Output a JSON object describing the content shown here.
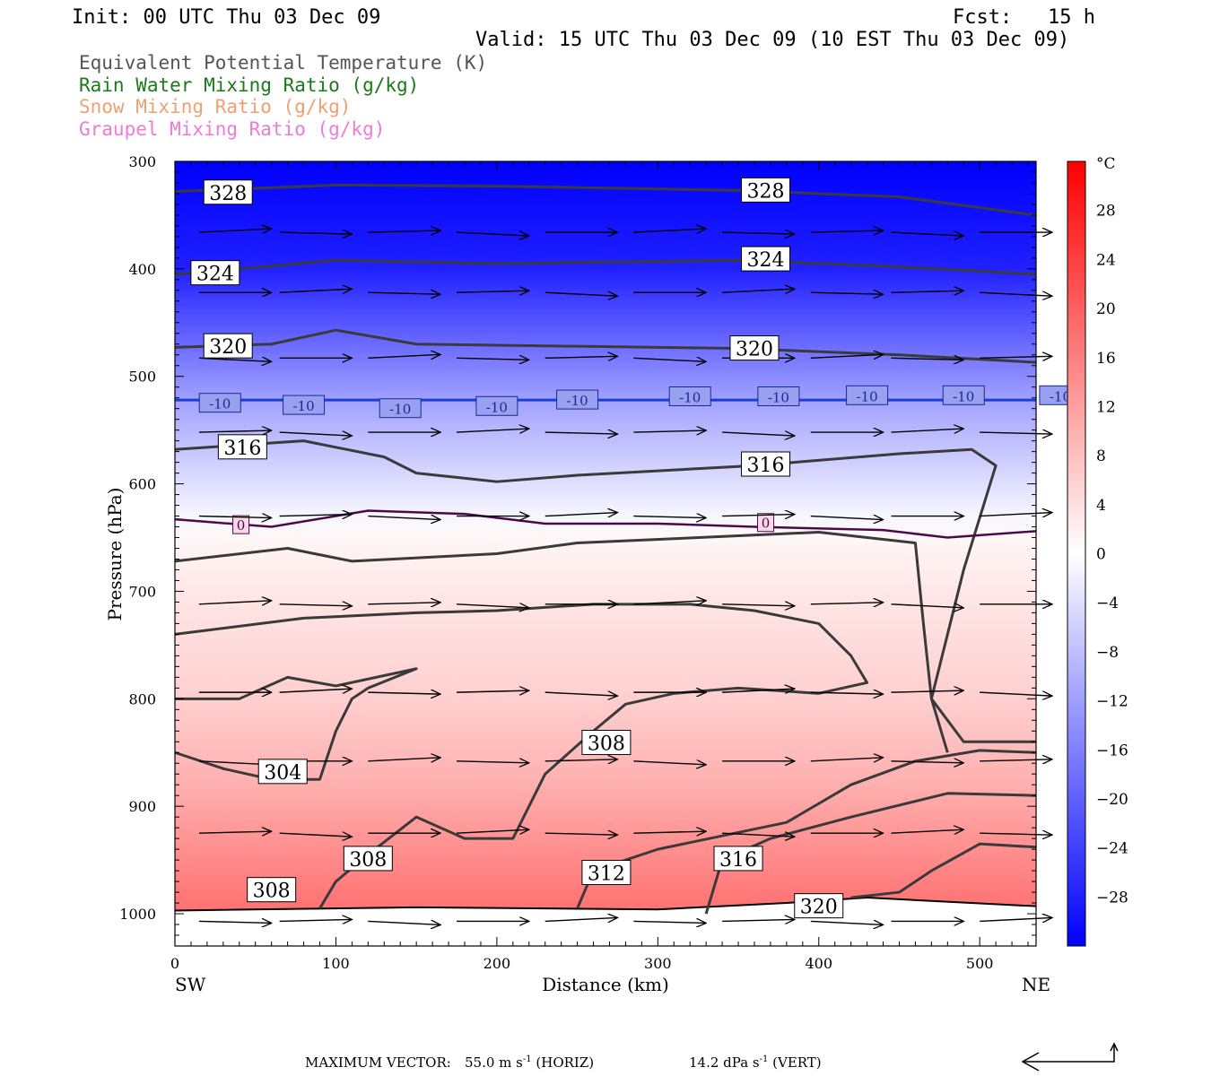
{
  "header": {
    "init": "Init: 00 UTC Thu 03 Dec 09",
    "fcst": "Fcst:   15 h",
    "valid": "Valid: 15 UTC Thu 03 Dec 09 (10 EST Thu 03 Dec 09)"
  },
  "legend": [
    {
      "label": "Equivalent Potential Temperature (K)",
      "color": "#555555"
    },
    {
      "label": "Rain Water Mixing Ratio (g/kg)",
      "color": "#1a7a1a"
    },
    {
      "label": "Snow Mixing Ratio (g/kg)",
      "color": "#f0a070"
    },
    {
      "label": "Graupel Mixing Ratio (g/kg)",
      "color": "#f07ad8"
    }
  ],
  "footer": {
    "max_vector_label": "MAXIMUM VECTOR:",
    "horiz_value": "55.0 m s",
    "horiz_exp": "-1",
    "horiz_tag": "(HORIZ)",
    "vert_value": "14.2 dPa s",
    "vert_exp": "-1",
    "vert_tag": "(VERT)"
  },
  "chart_data": {
    "type": "cross-section",
    "xlabel": "Distance (km)",
    "ylabel": "Pressure (hPa)",
    "x_left_label": "SW",
    "x_right_label": "NE",
    "xlim": [
      0,
      535
    ],
    "ylim": [
      1030,
      300
    ],
    "x_ticks": [
      0,
      100,
      200,
      300,
      400,
      500
    ],
    "y_ticks": [
      300,
      400,
      500,
      600,
      700,
      800,
      900,
      1000
    ],
    "colorbar": {
      "unit": "°C",
      "range": [
        -32,
        32
      ],
      "labels": [
        28,
        24,
        20,
        16,
        12,
        8,
        4,
        0,
        -4,
        -8,
        -12,
        -16,
        -20,
        -24,
        -28
      ]
    },
    "temperature_fill_levels": [
      {
        "p": 300,
        "t": -32
      },
      {
        "p": 400,
        "t": -28
      },
      {
        "p": 460,
        "t": -20
      },
      {
        "p": 520,
        "t": -12
      },
      {
        "p": 580,
        "t": -6
      },
      {
        "p": 630,
        "t": -1
      },
      {
        "p": 650,
        "t": 1
      },
      {
        "p": 700,
        "t": 3
      },
      {
        "p": 800,
        "t": 6
      },
      {
        "p": 880,
        "t": 10
      },
      {
        "p": 940,
        "t": 14
      },
      {
        "p": 1000,
        "t": 18
      }
    ],
    "isotherm_labels": {
      "minus10": "-10",
      "zero": "0"
    },
    "theta_e_contours": [
      {
        "level": 328,
        "points": [
          [
            0,
            328
          ],
          [
            100,
            322
          ],
          [
            200,
            323
          ],
          [
            350,
            327
          ],
          [
            450,
            333
          ],
          [
            535,
            350
          ]
        ],
        "labels": [
          [
            33,
            329
          ],
          [
            367,
            327
          ]
        ]
      },
      {
        "level": 324,
        "points": [
          [
            0,
            405
          ],
          [
            100,
            392
          ],
          [
            200,
            395
          ],
          [
            350,
            392
          ],
          [
            450,
            398
          ],
          [
            535,
            405
          ]
        ],
        "labels": [
          [
            25,
            404
          ],
          [
            367,
            391
          ]
        ]
      },
      {
        "level": 320,
        "points": [
          [
            0,
            473
          ],
          [
            60,
            470
          ],
          [
            100,
            457
          ],
          [
            150,
            470
          ],
          [
            250,
            472
          ],
          [
            350,
            474
          ],
          [
            450,
            480
          ],
          [
            535,
            487
          ]
        ],
        "labels": [
          [
            33,
            472
          ],
          [
            360,
            474
          ]
        ]
      },
      {
        "level": 316,
        "points": [
          [
            0,
            568
          ],
          [
            80,
            560
          ],
          [
            130,
            575
          ],
          [
            150,
            590
          ],
          [
            200,
            598
          ],
          [
            250,
            592
          ],
          [
            360,
            583
          ],
          [
            450,
            572
          ],
          [
            495,
            568
          ],
          [
            510,
            583
          ],
          [
            490,
            680
          ],
          [
            470,
            800
          ],
          [
            480,
            850
          ]
        ],
        "labels": [
          [
            42,
            566
          ],
          [
            367,
            582
          ]
        ]
      },
      {
        "level": 312,
        "points": [
          [
            0,
            672
          ],
          [
            70,
            660
          ],
          [
            110,
            672
          ],
          [
            200,
            665
          ],
          [
            250,
            655
          ],
          [
            400,
            645
          ],
          [
            460,
            655
          ],
          [
            465,
            730
          ],
          [
            470,
            800
          ],
          [
            490,
            840
          ],
          [
            535,
            840
          ]
        ],
        "labels": [
          [
            268,
            962
          ]
        ]
      },
      {
        "level": 308,
        "points": [
          [
            0,
            740
          ],
          [
            80,
            725
          ],
          [
            150,
            720
          ],
          [
            200,
            718
          ],
          [
            260,
            712
          ],
          [
            320,
            712
          ],
          [
            360,
            718
          ],
          [
            400,
            730
          ],
          [
            420,
            760
          ],
          [
            430,
            785
          ],
          [
            400,
            795
          ],
          [
            350,
            790
          ],
          [
            310,
            795
          ],
          [
            280,
            805
          ],
          [
            260,
            830
          ],
          [
            230,
            870
          ],
          [
            210,
            930
          ],
          [
            180,
            930
          ],
          [
            150,
            910
          ],
          [
            120,
            945
          ],
          [
            100,
            970
          ],
          [
            90,
            995
          ]
        ],
        "labels": [
          [
            268,
            841
          ],
          [
            120,
            949
          ],
          [
            60,
            978
          ]
        ]
      },
      {
        "level": 304,
        "points": [
          [
            0,
            800
          ],
          [
            40,
            800
          ],
          [
            70,
            780
          ],
          [
            100,
            788
          ],
          [
            150,
            772
          ],
          [
            120,
            790
          ],
          [
            110,
            800
          ],
          [
            100,
            830
          ],
          [
            90,
            875
          ],
          [
            60,
            875
          ],
          [
            30,
            865
          ],
          [
            0,
            850
          ]
        ],
        "labels": [
          [
            67,
            868
          ]
        ]
      },
      {
        "level": 316,
        "points": [
          [
            330,
            1000
          ],
          [
            340,
            950
          ],
          [
            370,
            930
          ],
          [
            420,
            910
          ],
          [
            480,
            888
          ],
          [
            535,
            890
          ]
        ],
        "labels": [
          [
            350,
            949
          ]
        ]
      },
      {
        "level": 320,
        "points": [
          [
            420,
            985
          ],
          [
            450,
            980
          ],
          [
            470,
            960
          ],
          [
            500,
            935
          ],
          [
            535,
            938
          ]
        ],
        "labels": [
          [
            400,
            993
          ]
        ]
      },
      {
        "level": 312,
        "points": [
          [
            250,
            995
          ],
          [
            260,
            960
          ],
          [
            300,
            940
          ],
          [
            380,
            915
          ],
          [
            420,
            880
          ],
          [
            460,
            858
          ],
          [
            500,
            848
          ],
          [
            535,
            850
          ]
        ],
        "labels": []
      }
    ],
    "wind_arrows": {
      "x_km": [
        15,
        65,
        120,
        175,
        230,
        285,
        340,
        395,
        445,
        500
      ],
      "p_rows": [
        366,
        422,
        483,
        552,
        630,
        712,
        794,
        858,
        925,
        1007
      ],
      "length_km": 45
    },
    "surface_line": [
      [
        0,
        997
      ],
      [
        150,
        994
      ],
      [
        300,
        996
      ],
      [
        380,
        990
      ],
      [
        430,
        985
      ],
      [
        535,
        993
      ]
    ]
  }
}
